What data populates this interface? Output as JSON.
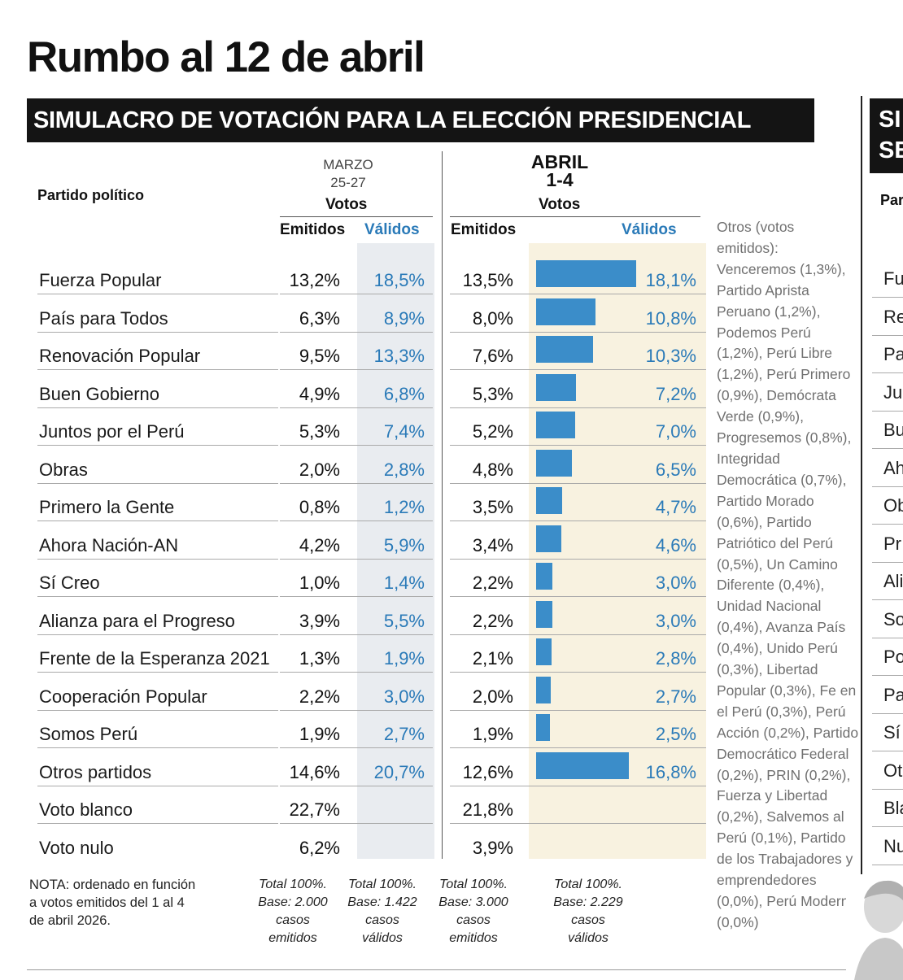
{
  "title": "Rumbo al 12 de abril",
  "banner": "SIMULACRO DE VOTACIÓN PARA LA ELECCIÓN PRESIDENCIAL",
  "banner_right": "SI\nSE",
  "header": {
    "party_label": "Partido político",
    "march_label": "MARZO",
    "march_dates": "25-27",
    "april_label": "ABRIL",
    "april_dates": "1-4",
    "votes_label": "Votos",
    "emitted_label": "Emitidos",
    "valid_label": "Válidos"
  },
  "colors": {
    "bar": "#3b8dc9",
    "valid_text": "#2a7ab8",
    "march_shade": "#e9ecf0",
    "april_shade": "#f8f2e0"
  },
  "chart_data": {
    "type": "table",
    "title": "SIMULACRO DE VOTACIÓN PARA LA ELECCIÓN PRESIDENCIAL",
    "columns": [
      "Partido político",
      "Marzo 25-27 Emitidos",
      "Marzo 25-27 Válidos",
      "Abril 1-4 Emitidos",
      "Abril 1-4 Válidos"
    ],
    "rows": [
      {
        "party": "Fuerza Popular",
        "mar_emit": "13,2%",
        "mar_valid": "18,5%",
        "apr_emit": "13,5%",
        "apr_valid": "18,1%",
        "apr_valid_value": 18.1
      },
      {
        "party": "País para Todos",
        "mar_emit": "6,3%",
        "mar_valid": "8,9%",
        "apr_emit": "8,0%",
        "apr_valid": "10,8%",
        "apr_valid_value": 10.8
      },
      {
        "party": "Renovación Popular",
        "mar_emit": "9,5%",
        "mar_valid": "13,3%",
        "apr_emit": "7,6%",
        "apr_valid": "10,3%",
        "apr_valid_value": 10.3
      },
      {
        "party": "Buen Gobierno",
        "mar_emit": "4,9%",
        "mar_valid": "6,8%",
        "apr_emit": "5,3%",
        "apr_valid": "7,2%",
        "apr_valid_value": 7.2
      },
      {
        "party": "Juntos por el Perú",
        "mar_emit": "5,3%",
        "mar_valid": "7,4%",
        "apr_emit": "5,2%",
        "apr_valid": "7,0%",
        "apr_valid_value": 7.0
      },
      {
        "party": "Obras",
        "mar_emit": "2,0%",
        "mar_valid": "2,8%",
        "apr_emit": "4,8%",
        "apr_valid": "6,5%",
        "apr_valid_value": 6.5
      },
      {
        "party": "Primero la Gente",
        "mar_emit": "0,8%",
        "mar_valid": "1,2%",
        "apr_emit": "3,5%",
        "apr_valid": "4,7%",
        "apr_valid_value": 4.7
      },
      {
        "party": "Ahora Nación-AN",
        "mar_emit": "4,2%",
        "mar_valid": "5,9%",
        "apr_emit": "3,4%",
        "apr_valid": "4,6%",
        "apr_valid_value": 4.6
      },
      {
        "party": "Sí Creo",
        "mar_emit": "1,0%",
        "mar_valid": "1,4%",
        "apr_emit": "2,2%",
        "apr_valid": "3,0%",
        "apr_valid_value": 3.0
      },
      {
        "party": "Alianza para el Progreso",
        "mar_emit": "3,9%",
        "mar_valid": "5,5%",
        "apr_emit": "2,2%",
        "apr_valid": "3,0%",
        "apr_valid_value": 3.0
      },
      {
        "party": "Frente de la Esperanza 2021",
        "mar_emit": "1,3%",
        "mar_valid": "1,9%",
        "apr_emit": "2,1%",
        "apr_valid": "2,8%",
        "apr_valid_value": 2.8
      },
      {
        "party": "Cooperación Popular",
        "mar_emit": "2,2%",
        "mar_valid": "3,0%",
        "apr_emit": "2,0%",
        "apr_valid": "2,7%",
        "apr_valid_value": 2.7
      },
      {
        "party": "Somos Perú",
        "mar_emit": "1,9%",
        "mar_valid": "2,7%",
        "apr_emit": "1,9%",
        "apr_valid": "2,5%",
        "apr_valid_value": 2.5
      },
      {
        "party": "Otros partidos",
        "mar_emit": "14,6%",
        "mar_valid": "20,7%",
        "apr_emit": "12,6%",
        "apr_valid": "16,8%",
        "apr_valid_value": 16.8
      },
      {
        "party": "Voto blanco",
        "mar_emit": "22,7%",
        "mar_valid": "",
        "apr_emit": "21,8%",
        "apr_valid": "",
        "apr_valid_value": null
      },
      {
        "party": "Voto nulo",
        "mar_emit": "6,2%",
        "mar_valid": "",
        "apr_emit": "3,9%",
        "apr_valid": "",
        "apr_valid_value": null
      }
    ]
  },
  "others_note": "Otros (votos emitidos): Venceremos (1,3%), Partido Aprista Peruano (1,2%), Podemos Perú (1,2%), Perú Libre (1,2%), Perú Primero (0,9%), Demócrata Verde (0,9%), Progresemos (0,8%), Integridad Democrática (0,7%), Partido Morado (0,6%), Partido Patriótico del Perú (0,5%), Un Camino Diferente (0,4%), Unidad Nacional (0,4%), Avanza País (0,4%), Unido Perú (0,3%), Libertad Popular (0,3%), Fe en el Perú (0,3%), Perú Acción (0,2%), Partido Democrático Federal (0,2%), PRIN (0,2%), Fuerza y Libertad (0,2%), Salvemos al Perú (0,1%), Partido de los Trabajadores y emprendedores (0,0%), Perú Moderno (0,0%)",
  "footnote": {
    "nota": [
      "NOTA: ordenado en función",
      "a votos emitidos del 1 al 4",
      "de abril 2026."
    ],
    "bases": [
      "Total 100%.\nBase: 2.000\ncasos\nemitidos",
      "Total 100%.\nBase: 1.422\ncasos\nválidos",
      "Total 100%.\nBase: 3.000\ncasos\nemitidos",
      "Total 100%.\nBase: 2.229\ncasos\nválidos"
    ]
  },
  "right_panel": {
    "header": "Par",
    "items": [
      "Fu",
      "Re",
      "Pa",
      "Jun",
      "Bu",
      "Ah",
      "Ob",
      "Pr",
      "Ali",
      "So",
      "Po",
      "Pa",
      "Sí",
      "Ot",
      "Bla",
      "Nu"
    ]
  }
}
